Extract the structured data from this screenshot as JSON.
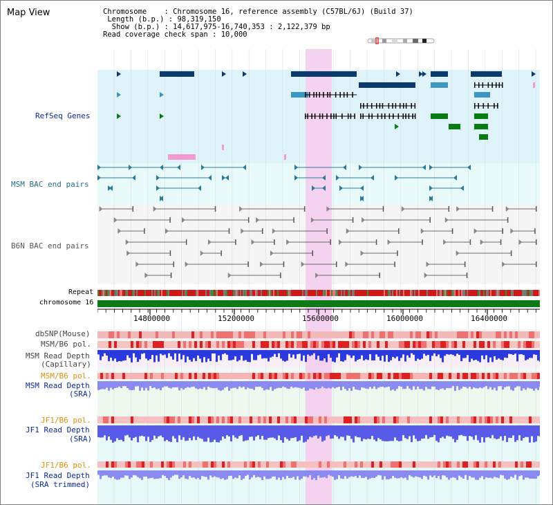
{
  "title": "Map View",
  "info": {
    "chromosome_label": "Chromosome",
    "chromosome_value": "Chromosome 16, reference assembly (C57BL/6J) (Build 37)",
    "length_label": "Length (b.p.)",
    "length_value": "98,319,150",
    "show_label": "Show (b.p.)",
    "show_value": "14,617,975-16,740,353 : 2,122,379 bp",
    "span_label": "Read coverage check span",
    "span_value": "10,000"
  },
  "tracks": {
    "refseq": "RefSeq Genes",
    "msm_bac": "MSM BAC end pairs",
    "b6n_bac": "B6N BAC end pairs",
    "repeat": "Repeat",
    "chromosome": "chromosome 16",
    "dbsnp": "dbSNP(Mouse)",
    "msm_b6_pol": "MSM/B6 pol.",
    "msm_depth_cap_1": "MSM Read Depth",
    "msm_depth_cap_2": "(Capillary)",
    "msm_b6_pol2": "MSM/B6 pol.",
    "msm_depth_sra_1": "MSM Read Depth",
    "msm_depth_sra_2": "(SRA)",
    "jf1_pol": "JF1/B6 pol.",
    "jf1_depth_1": "JF1 Read Depth",
    "jf1_depth_2": "(SRA)",
    "jf1_pol2": "JF1/B6 pol.",
    "jf1_trim_1": "JF1 Read Depth",
    "jf1_trim_2": "(SRA trimmed)"
  },
  "axis": {
    "ticks": [
      "14800000",
      "15200000",
      "15600000",
      "16000000",
      "16400000"
    ]
  },
  "colors": {
    "refseq_bg": "#dff3fb",
    "bac_bg": "#e8fafa",
    "b6n_bg": "#f5f5f5",
    "highlight": "#f5d2f0",
    "gene_dark": "#0a3a6e",
    "gene_mid": "#3d97c2",
    "gene_green": "#0a7a12",
    "chrom_bar": "#0e7a16",
    "label_blue": "#0a2a9a",
    "label_orange": "#e0900a",
    "label_teal": "#2a6f86",
    "label_gray": "#555555"
  }
}
